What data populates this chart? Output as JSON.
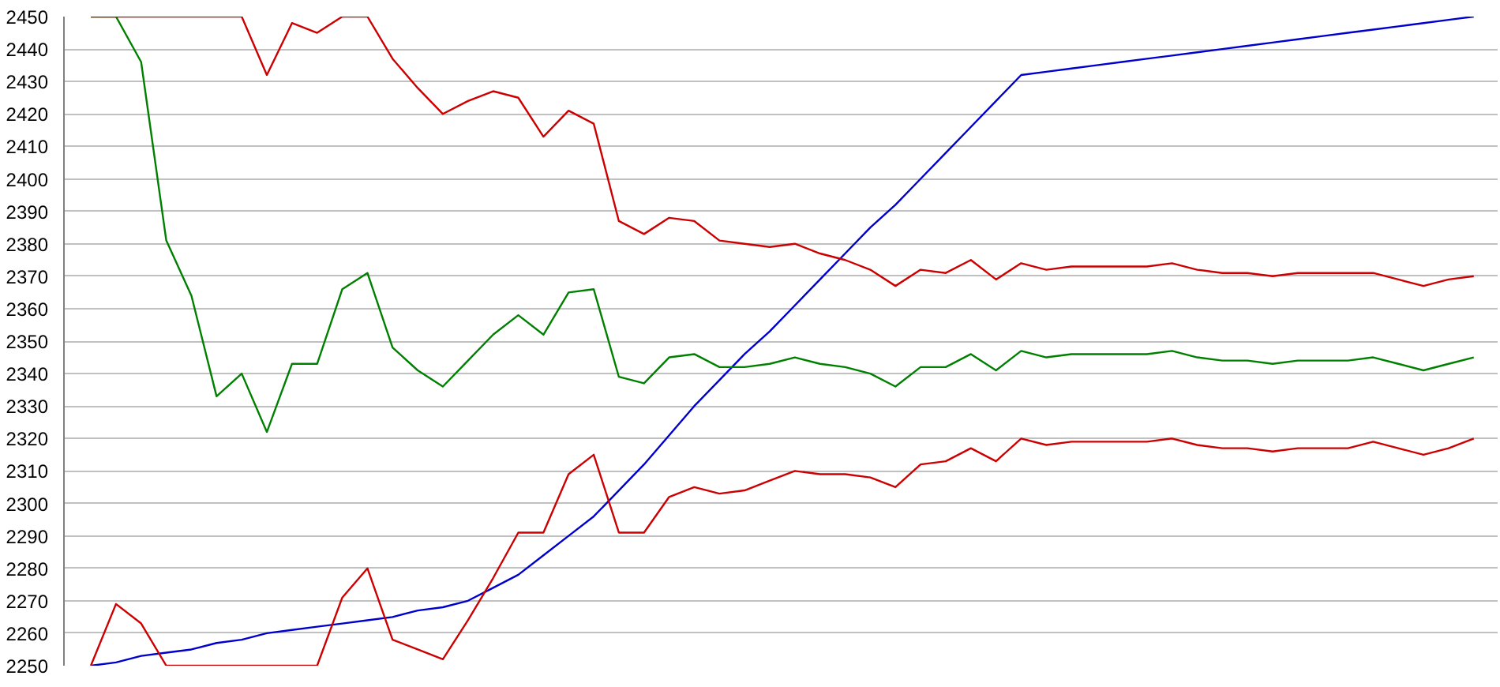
{
  "chart_data": {
    "type": "line",
    "categories": [
      null,
      null,
      null,
      null,
      null,
      null,
      null,
      null,
      null,
      null,
      null,
      null,
      null,
      null,
      null,
      null,
      null,
      null,
      null,
      null,
      null,
      null,
      null,
      null,
      null,
      null,
      null,
      null,
      null,
      null,
      null,
      null,
      null,
      null,
      null,
      null,
      null,
      null,
      null,
      null,
      null,
      null,
      null,
      null,
      null,
      null,
      null,
      null,
      null,
      null,
      null,
      null,
      null,
      null,
      null,
      null
    ],
    "ylim": [
      2250,
      2450
    ],
    "yticks": [
      2250,
      2260,
      2270,
      2280,
      2290,
      2300,
      2310,
      2320,
      2330,
      2340,
      2350,
      2360,
      2370,
      2380,
      2390,
      2400,
      2410,
      2420,
      2430,
      2440,
      2450
    ],
    "grid": "y",
    "tick_labels": "y",
    "line_style": "solid",
    "marker": "none",
    "series": [
      {
        "color": "#cc0000",
        "values": [
          2450,
          2450,
          2450,
          2450,
          2450,
          2450,
          2450,
          2432,
          2448,
          2445,
          2450,
          2450,
          2437,
          2428,
          2420,
          2424,
          2427,
          2425,
          2413,
          2421,
          2417,
          2387,
          2383,
          2388,
          2387,
          2381,
          2380,
          2379,
          2380,
          2377,
          2375,
          2372,
          2367,
          2372,
          2371,
          2375,
          2369,
          2374,
          2372,
          2373,
          2373,
          2373,
          2373,
          2374,
          2372,
          2371,
          2371,
          2370,
          2371,
          2371,
          2371,
          2371,
          2369,
          2367,
          2369,
          2370
        ]
      },
      {
        "color": "#008000",
        "values": [
          2450,
          2450,
          2436,
          2381,
          2364,
          2333,
          2340,
          2322,
          2343,
          2343,
          2366,
          2371,
          2348,
          2341,
          2336,
          2344,
          2352,
          2358,
          2352,
          2365,
          2366,
          2339,
          2337,
          2345,
          2346,
          2342,
          2342,
          2343,
          2345,
          2343,
          2342,
          2340,
          2336,
          2342,
          2342,
          2346,
          2341,
          2347,
          2345,
          2346,
          2346,
          2346,
          2346,
          2347,
          2345,
          2344,
          2344,
          2343,
          2344,
          2344,
          2344,
          2345,
          2343,
          2341,
          2343,
          2345
        ]
      },
      {
        "color": "#cc0000",
        "values": [
          2250,
          2269,
          2263,
          2250,
          2250,
          2250,
          2250,
          2250,
          2250,
          2250,
          2271,
          2280,
          2258,
          2255,
          2252,
          2264,
          2277,
          2291,
          2291,
          2309,
          2315,
          2291,
          2291,
          2302,
          2305,
          2303,
          2304,
          2307,
          2310,
          2309,
          2309,
          2308,
          2305,
          2312,
          2313,
          2317,
          2313,
          2320,
          2318,
          2319,
          2319,
          2319,
          2319,
          2320,
          2318,
          2317,
          2317,
          2316,
          2317,
          2317,
          2317,
          2319,
          2317,
          2315,
          2317,
          2320
        ]
      },
      {
        "color": "#0000cc",
        "values": [
          2250,
          2251,
          2253,
          2254,
          2255,
          2257,
          2258,
          2260,
          2261,
          2262,
          2263,
          2264,
          2265,
          2267,
          2268,
          2270,
          2274,
          2278,
          2284,
          2290,
          2296,
          2304,
          2312,
          2321,
          2330,
          2338,
          2346,
          2353,
          2361,
          2369,
          2377,
          2385,
          2392,
          2400,
          2408,
          2416,
          2424,
          2432,
          2433,
          2434,
          2435,
          2436,
          2437,
          2438,
          2439,
          2440,
          2441,
          2442,
          2443,
          2444,
          2445,
          2446,
          2447,
          2448,
          2449,
          2450
        ]
      }
    ]
  }
}
